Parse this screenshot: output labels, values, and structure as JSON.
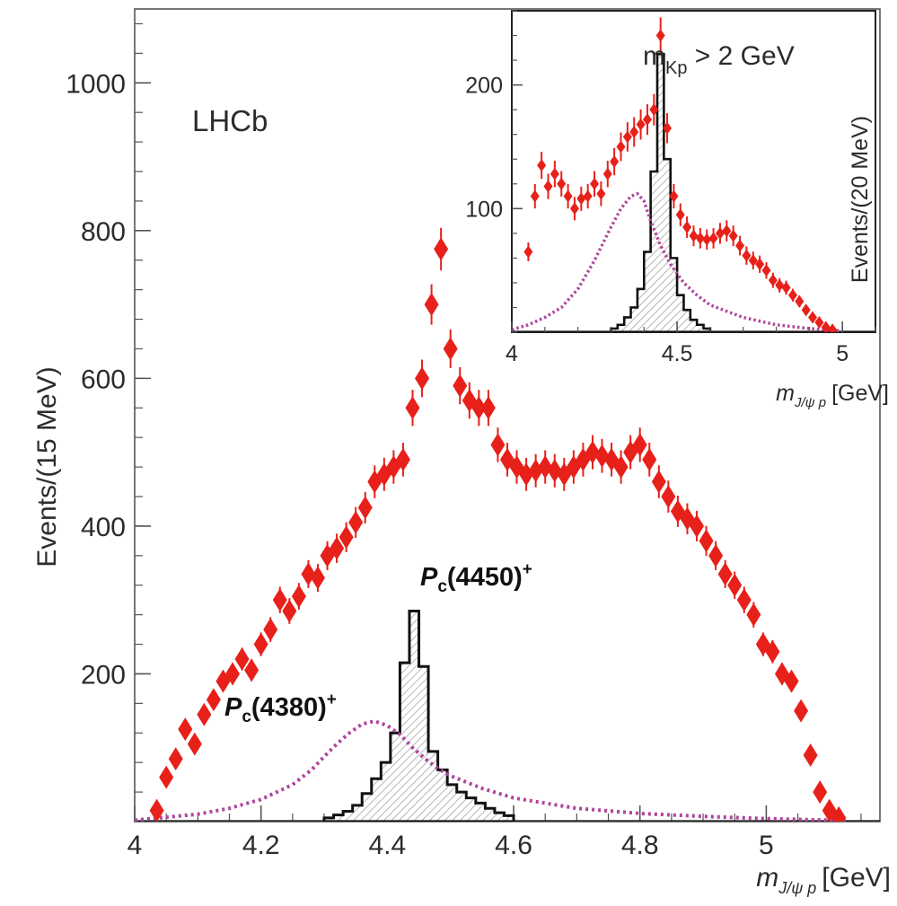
{
  "chart_data": [
    {
      "type": "scatter",
      "panel": "main",
      "experiment_label": "LHCb",
      "xlabel_main": "m",
      "xlabel_sub": "J/ψ p",
      "xlabel_unit": "[GeV]",
      "ylabel": "Events/(15 MeV)",
      "xlim": [
        4.0,
        5.18
      ],
      "ylim": [
        0,
        1100
      ],
      "x_ticks": [
        4.0,
        4.2,
        4.4,
        4.6,
        4.8,
        5.0
      ],
      "x_tick_labels": [
        "4",
        "4.2",
        "4.4",
        "4.6",
        "4.8",
        "5"
      ],
      "y_ticks": [
        200,
        400,
        600,
        800,
        1000
      ],
      "y_tick_labels": [
        "200",
        "400",
        "600",
        "800",
        "1000"
      ],
      "grid": false,
      "colors": {
        "data": "#e8201a",
        "pc4380": "#b0449c",
        "pc4450": "#111111",
        "hatch": "#9a9a9a",
        "axis": "#555555"
      },
      "series": [
        {
          "role": "data-points",
          "style": "red diamond markers with error bars",
          "points": [
            [
              4.035,
              15
            ],
            [
              4.05,
              60
            ],
            [
              4.065,
              85
            ],
            [
              4.08,
              125
            ],
            [
              4.095,
              105
            ],
            [
              4.11,
              145
            ],
            [
              4.125,
              165
            ],
            [
              4.14,
              190
            ],
            [
              4.155,
              200
            ],
            [
              4.17,
              220
            ],
            [
              4.185,
              205
            ],
            [
              4.2,
              240
            ],
            [
              4.215,
              260
            ],
            [
              4.23,
              300
            ],
            [
              4.245,
              285
            ],
            [
              4.26,
              305
            ],
            [
              4.275,
              335
            ],
            [
              4.29,
              330
            ],
            [
              4.305,
              360
            ],
            [
              4.32,
              370
            ],
            [
              4.335,
              385
            ],
            [
              4.35,
              405
            ],
            [
              4.365,
              425
            ],
            [
              4.38,
              460
            ],
            [
              4.395,
              470
            ],
            [
              4.41,
              480
            ],
            [
              4.425,
              490
            ],
            [
              4.44,
              560
            ],
            [
              4.455,
              600
            ],
            [
              4.47,
              700
            ],
            [
              4.485,
              775
            ],
            [
              4.5,
              640
            ],
            [
              4.515,
              590
            ],
            [
              4.53,
              570
            ],
            [
              4.545,
              560
            ],
            [
              4.56,
              560
            ],
            [
              4.575,
              510
            ],
            [
              4.59,
              490
            ],
            [
              4.605,
              480
            ],
            [
              4.62,
              470
            ],
            [
              4.635,
              475
            ],
            [
              4.65,
              480
            ],
            [
              4.665,
              475
            ],
            [
              4.68,
              470
            ],
            [
              4.695,
              480
            ],
            [
              4.71,
              490
            ],
            [
              4.725,
              500
            ],
            [
              4.74,
              495
            ],
            [
              4.755,
              490
            ],
            [
              4.77,
              480
            ],
            [
              4.785,
              500
            ],
            [
              4.8,
              510
            ],
            [
              4.815,
              490
            ],
            [
              4.83,
              460
            ],
            [
              4.845,
              440
            ],
            [
              4.86,
              420
            ],
            [
              4.875,
              410
            ],
            [
              4.89,
              400
            ],
            [
              4.905,
              380
            ],
            [
              4.92,
              360
            ],
            [
              4.935,
              335
            ],
            [
              4.95,
              320
            ],
            [
              4.965,
              300
            ],
            [
              4.98,
              280
            ],
            [
              4.995,
              240
            ],
            [
              5.01,
              230
            ],
            [
              5.025,
              200
            ],
            [
              5.04,
              190
            ],
            [
              5.055,
              150
            ],
            [
              5.07,
              90
            ],
            [
              5.085,
              40
            ],
            [
              5.1,
              15
            ],
            [
              5.115,
              5
            ]
          ]
        },
        {
          "name": "Pc(4380)+",
          "role": "resonance-dotted-curve",
          "x": [
            4.0,
            4.05,
            4.1,
            4.15,
            4.2,
            4.25,
            4.28,
            4.3,
            4.32,
            4.34,
            4.36,
            4.38,
            4.4,
            4.42,
            4.44,
            4.46,
            4.48,
            4.5,
            4.55,
            4.6,
            4.7,
            4.8,
            4.9,
            5.0,
            5.1,
            5.13
          ],
          "y": [
            2,
            6,
            10,
            18,
            30,
            50,
            70,
            88,
            105,
            120,
            132,
            136,
            130,
            118,
            100,
            85,
            72,
            62,
            45,
            32,
            18,
            11,
            7,
            4,
            2,
            1
          ]
        },
        {
          "name": "Pc(4450)+",
          "role": "resonance-histogram",
          "bin_edges": [
            4.3,
            4.315,
            4.33,
            4.345,
            4.36,
            4.375,
            4.39,
            4.405,
            4.42,
            4.435,
            4.45,
            4.465,
            4.48,
            4.495,
            4.51,
            4.525,
            4.54,
            4.555,
            4.57,
            4.585,
            4.6
          ],
          "values": [
            5,
            9,
            14,
            22,
            38,
            58,
            80,
            120,
            215,
            285,
            210,
            95,
            70,
            50,
            40,
            32,
            25,
            18,
            12,
            8
          ]
        }
      ],
      "annotations": [
        {
          "label_symbol": "P",
          "label_sub": "c",
          "label_rest": "(4450)",
          "label_sup": "+"
        },
        {
          "label_symbol": "P",
          "label_sub": "c",
          "label_rest": "(4380)",
          "label_sup": "+"
        }
      ]
    },
    {
      "type": "scatter",
      "panel": "inset",
      "title_main": "m",
      "title_sub": "Kp",
      "title_rest": " > 2 GeV",
      "xlabel_main": "m",
      "xlabel_sub": "J/ψ p",
      "xlabel_unit": "[GeV]",
      "ylabel": "Events/(20 MeV)",
      "xlim": [
        4.0,
        5.1
      ],
      "ylim": [
        0,
        260
      ],
      "x_ticks": [
        4.0,
        4.5,
        5.0
      ],
      "x_tick_labels": [
        "4",
        "4.5",
        "5"
      ],
      "y_ticks": [
        100,
        200
      ],
      "y_tick_labels": [
        "100",
        "200"
      ],
      "series": [
        {
          "role": "data-points",
          "points": [
            [
              4.05,
              65
            ],
            [
              4.07,
              110
            ],
            [
              4.09,
              135
            ],
            [
              4.11,
              118
            ],
            [
              4.13,
              128
            ],
            [
              4.15,
              120
            ],
            [
              4.17,
              110
            ],
            [
              4.19,
              100
            ],
            [
              4.21,
              108
            ],
            [
              4.23,
              110
            ],
            [
              4.25,
              120
            ],
            [
              4.27,
              112
            ],
            [
              4.29,
              128
            ],
            [
              4.31,
              138
            ],
            [
              4.33,
              150
            ],
            [
              4.35,
              158
            ],
            [
              4.37,
              162
            ],
            [
              4.39,
              168
            ],
            [
              4.41,
              172
            ],
            [
              4.43,
              180
            ],
            [
              4.45,
              240
            ],
            [
              4.47,
              165
            ],
            [
              4.49,
              110
            ],
            [
              4.51,
              95
            ],
            [
              4.53,
              85
            ],
            [
              4.55,
              78
            ],
            [
              4.57,
              76
            ],
            [
              4.59,
              75
            ],
            [
              4.61,
              76
            ],
            [
              4.63,
              80
            ],
            [
              4.65,
              82
            ],
            [
              4.67,
              78
            ],
            [
              4.69,
              70
            ],
            [
              4.71,
              62
            ],
            [
              4.73,
              58
            ],
            [
              4.75,
              55
            ],
            [
              4.77,
              50
            ],
            [
              4.79,
              42
            ],
            [
              4.81,
              38
            ],
            [
              4.83,
              36
            ],
            [
              4.85,
              30
            ],
            [
              4.87,
              25
            ],
            [
              4.89,
              18
            ],
            [
              4.91,
              12
            ],
            [
              4.93,
              8
            ],
            [
              4.95,
              4
            ],
            [
              4.97,
              2
            ]
          ]
        },
        {
          "role": "resonance-dotted-curve",
          "x": [
            4.0,
            4.05,
            4.1,
            4.15,
            4.2,
            4.25,
            4.3,
            4.33,
            4.36,
            4.38,
            4.4,
            4.42,
            4.45,
            4.48,
            4.52,
            4.56,
            4.6,
            4.7,
            4.8,
            4.9,
            5.0
          ],
          "y": [
            2,
            6,
            12,
            20,
            35,
            58,
            85,
            100,
            110,
            112,
            106,
            90,
            70,
            55,
            40,
            30,
            22,
            12,
            6,
            3,
            1
          ]
        },
        {
          "role": "resonance-histogram",
          "bin_edges": [
            4.3,
            4.32,
            4.34,
            4.36,
            4.38,
            4.4,
            4.42,
            4.44,
            4.46,
            4.48,
            4.5,
            4.52,
            4.54,
            4.56,
            4.58,
            4.6
          ],
          "values": [
            3,
            6,
            12,
            20,
            35,
            65,
            130,
            225,
            140,
            60,
            30,
            18,
            10,
            6,
            3
          ]
        }
      ]
    }
  ]
}
